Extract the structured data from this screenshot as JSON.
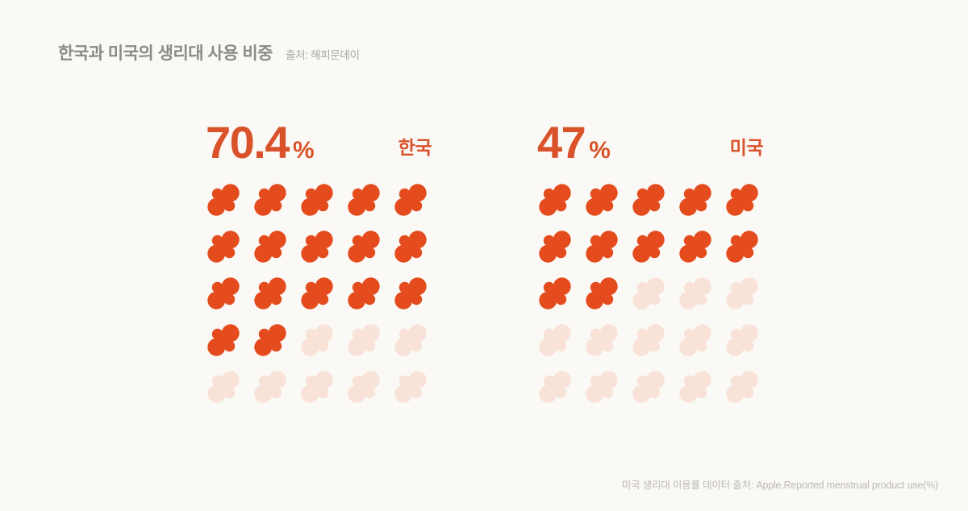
{
  "title": "한국과 미국의 생리대 사용 비중",
  "source": "출처: 해피문데이",
  "footer": "미국 생리대 이용률 데이터 출처: Apple,Reported menstrual product use(%)",
  "labels": {
    "percent": "%"
  },
  "colors": {
    "background": "#FAF9F6",
    "accent_icon": "#E44C1E",
    "accent_text": "#D9522A",
    "faded_icon": "#F9E2D8",
    "title_gray": "#8B8A86",
    "source_gray": "#A9A8A3",
    "footer_gray": "#BCB9B4"
  },
  "chart_data": {
    "type": "pictogram",
    "title": "한국과 미국의 생리대 사용 비중",
    "source": "출처: 해피문데이",
    "unit": "%",
    "icon": "sanitary-pad",
    "grid": {
      "rows": 5,
      "cols": 5,
      "total_icons": 25,
      "icon_value_percent": 4
    },
    "series": [
      {
        "name": "한국",
        "value": 70.4,
        "value_label": "70.4",
        "filled_icons": 17
      },
      {
        "name": "미국",
        "value": 47,
        "value_label": "47",
        "filled_icons": 12
      }
    ],
    "legend_position": "none",
    "grid_lines": false,
    "annotation": "미국 생리대 이용률 데이터 출처: Apple,Reported menstrual product use(%)"
  }
}
